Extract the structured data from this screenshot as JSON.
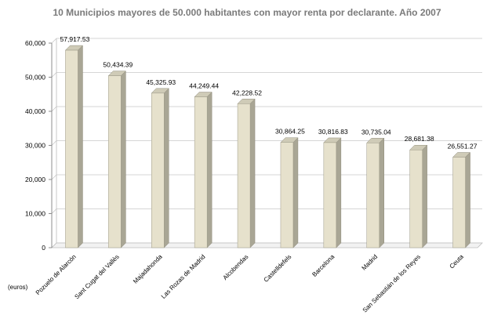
{
  "chart_data": {
    "type": "bar",
    "title": "10 Municipios mayores de 50.000 habitantes con mayor renta por declarante. Año 2007",
    "ylabel": "(euros)",
    "categories": [
      "Pozuelo de Alarcón",
      "Sant Cugat del Vallès",
      "Majadahonda",
      "Las Rozas de Madrid",
      "Alcobendas",
      "Castelldefels",
      "Barcelona",
      "Madrid",
      "San Sebastián de los Reyes",
      "Ceuta"
    ],
    "values": [
      57917.53,
      50434.39,
      45325.93,
      44249.44,
      42228.52,
      30864.25,
      30816.83,
      30735.04,
      28681.38,
      26551.27
    ],
    "value_labels": [
      "57,917.53",
      "50,434.39",
      "45,325.93",
      "44,249.44",
      "42,228.52",
      "30,864.25",
      "30,816.83",
      "30,735.04",
      "28,681.38",
      "26,551.27"
    ],
    "ylim": [
      0,
      60000
    ],
    "yticks": [
      0,
      10000,
      20000,
      30000,
      40000,
      50000,
      60000
    ],
    "ytick_labels": [
      "0",
      "10,000",
      "20,000",
      "30,000",
      "40,000",
      "50,000",
      "60,000"
    ],
    "grid": true,
    "bar_color": "#e6e1cc",
    "bar_side_color": "#a9a695",
    "bar_top_color": "#cfcbb7"
  }
}
